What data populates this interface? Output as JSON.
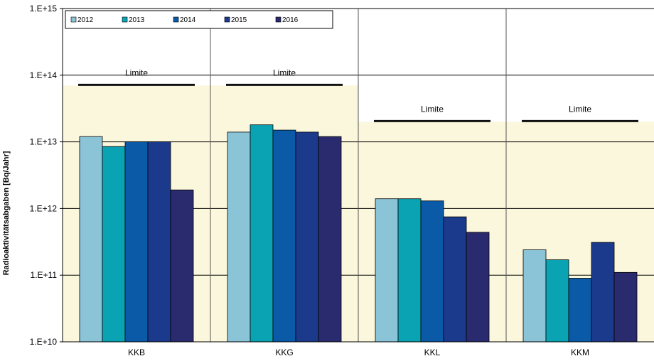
{
  "chart_data": {
    "type": "bar",
    "ylabel": "Radioaktivitätsabgaben [Bq/Jahr]",
    "yscale": "log",
    "ylim": [
      10000000000.0,
      1000000000000000.0
    ],
    "yticks": [
      10000000000.0,
      100000000000.0,
      1000000000000.0,
      10000000000000.0,
      100000000000000.0,
      1000000000000000.0
    ],
    "ytick_labels": [
      "1.E+10",
      "1.E+11",
      "1.E+12",
      "1.E+13",
      "1.E+14",
      "1.E+15"
    ],
    "categories": [
      "KKB",
      "KKG",
      "KKL",
      "KKM"
    ],
    "series": [
      {
        "name": "2012",
        "color": "#8bc3d7",
        "values": [
          12000000000000.0,
          14000000000000.0,
          1400000000000.0,
          240000000000.0
        ]
      },
      {
        "name": "2013",
        "color": "#0aa3b3",
        "values": [
          8500000000000.0,
          18000000000000.0,
          1400000000000.0,
          170000000000.0
        ]
      },
      {
        "name": "2014",
        "color": "#0a5aa8",
        "values": [
          10000000000000.0,
          15000000000000.0,
          1300000000000.0,
          90000000000.0
        ]
      },
      {
        "name": "2015",
        "color": "#1c3a8c",
        "values": [
          10000000000000.0,
          14000000000000.0,
          750000000000.0,
          310000000000.0
        ]
      },
      {
        "name": "2016",
        "color": "#2a2a6e",
        "values": [
          1900000000000.0,
          12000000000000.0,
          440000000000.0,
          110000000000.0
        ]
      }
    ],
    "limits": {
      "label": "Limite",
      "values": [
        70000000000000.0,
        70000000000000.0,
        20000000000000.0,
        20000000000000.0
      ],
      "fill_color": "#fbf7dc"
    },
    "legend_position": "top-left",
    "grid": "horizontal major + category separators"
  }
}
